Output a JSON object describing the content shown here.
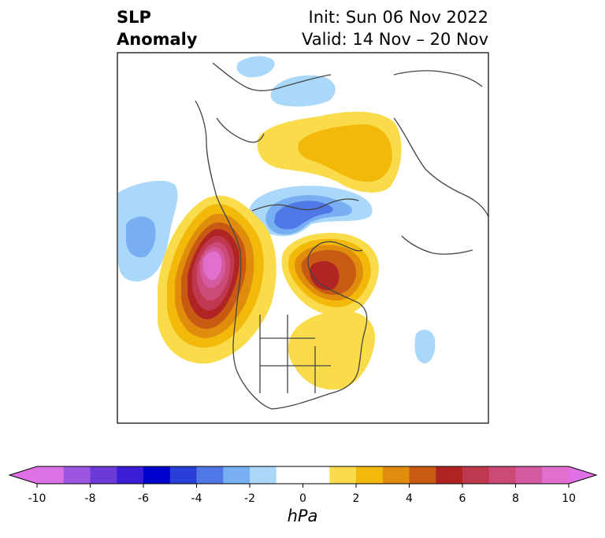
{
  "header": {
    "title_line1": "SLP",
    "title_line2": "Anomaly",
    "init_text": "Init: Sun 06 Nov 2022",
    "valid_text": "Valid: 14 Nov – 20 Nov"
  },
  "colorbar": {
    "unit": "hPa",
    "min": -10,
    "max": 10,
    "tick_labels": [
      "-10",
      "-8",
      "-6",
      "-4",
      "-2",
      "0",
      "2",
      "4",
      "6",
      "8",
      "10"
    ],
    "colors": [
      "#d973e6",
      "#9b55e0",
      "#6b3ad8",
      "#3a1fd6",
      "#0000cc",
      "#2a3fd8",
      "#4f78e6",
      "#78aef2",
      "#a9d8fa",
      "#ffffff",
      "#ffffff",
      "#fadc4a",
      "#f2b80a",
      "#e08c0c",
      "#c85a14",
      "#b02424",
      "#c03850",
      "#cc4a78",
      "#d65aa0",
      "#e070cc"
    ]
  },
  "map": {
    "label": "SLP anomaly map over North America and the Arctic",
    "features": [
      {
        "name": "positive-anomaly-north-pacific",
        "sign": "positive",
        "peak_hpa": 10
      },
      {
        "name": "positive-anomaly-canada-hudson-bay",
        "sign": "positive",
        "peak_hpa": 6
      },
      {
        "name": "positive-anomaly-eastern-us",
        "sign": "positive",
        "peak_hpa": 2
      },
      {
        "name": "positive-anomaly-siberia",
        "sign": "positive",
        "peak_hpa": 3
      },
      {
        "name": "negative-anomaly-arctic-ocean",
        "sign": "negative",
        "peak_hpa": -4
      },
      {
        "name": "negative-anomaly-northeast-pacific",
        "sign": "negative",
        "peak_hpa": -3
      },
      {
        "name": "negative-anomaly-north-atlantic",
        "sign": "negative",
        "peak_hpa": -1
      },
      {
        "name": "negative-anomaly-siberian-coast",
        "sign": "negative",
        "peak_hpa": -1
      }
    ]
  }
}
